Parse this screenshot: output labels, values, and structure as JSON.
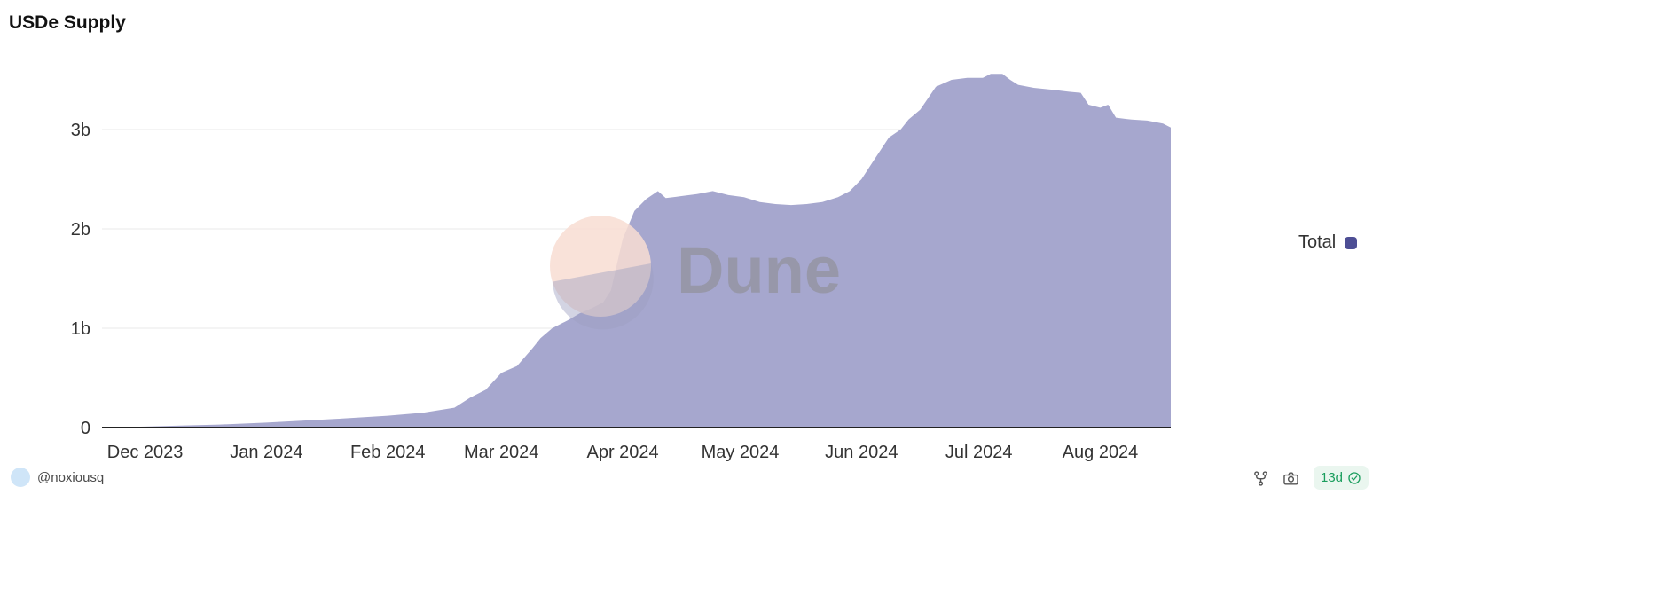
{
  "page": {
    "title": "USDe Supply"
  },
  "chart_data": {
    "type": "area",
    "title": "USDe Supply",
    "xlabel": "",
    "ylabel": "",
    "y_unit": "billions",
    "grid": "horizontal",
    "x_range": [
      "2023-11-20",
      "2024-08-19"
    ],
    "y_range": [
      0,
      3.6
    ],
    "x_ticks": [
      {
        "date": "2023-12-01",
        "label": "Dec 2023"
      },
      {
        "date": "2024-01-01",
        "label": "Jan 2024"
      },
      {
        "date": "2024-02-01",
        "label": "Feb 2024"
      },
      {
        "date": "2024-03-01",
        "label": "Mar 2024"
      },
      {
        "date": "2024-04-01",
        "label": "Apr 2024"
      },
      {
        "date": "2024-05-01",
        "label": "May 2024"
      },
      {
        "date": "2024-06-01",
        "label": "Jun 2024"
      },
      {
        "date": "2024-07-01",
        "label": "Jul 2024"
      },
      {
        "date": "2024-08-01",
        "label": "Aug 2024"
      }
    ],
    "y_ticks": [
      {
        "value": 0,
        "label": "0"
      },
      {
        "value": 1,
        "label": "1b"
      },
      {
        "value": 2,
        "label": "2b"
      },
      {
        "value": 3,
        "label": "3b"
      }
    ],
    "legend": {
      "position": "right",
      "items": [
        {
          "label": "Total",
          "swatch_color": "#4d4e94"
        }
      ]
    },
    "series": [
      {
        "name": "Total",
        "color": "#a6a7ce",
        "points": [
          [
            "2023-11-20",
            0.0
          ],
          [
            "2023-12-01",
            0.01
          ],
          [
            "2023-12-10",
            0.02
          ],
          [
            "2023-12-20",
            0.03
          ],
          [
            "2024-01-01",
            0.05
          ],
          [
            "2024-01-10",
            0.07
          ],
          [
            "2024-01-20",
            0.09
          ],
          [
            "2024-02-01",
            0.12
          ],
          [
            "2024-02-10",
            0.15
          ],
          [
            "2024-02-18",
            0.2
          ],
          [
            "2024-02-22",
            0.3
          ],
          [
            "2024-02-26",
            0.38
          ],
          [
            "2024-03-01",
            0.55
          ],
          [
            "2024-03-05",
            0.62
          ],
          [
            "2024-03-09",
            0.8
          ],
          [
            "2024-03-11",
            0.9
          ],
          [
            "2024-03-14",
            1.0
          ],
          [
            "2024-03-18",
            1.08
          ],
          [
            "2024-03-21",
            1.15
          ],
          [
            "2024-03-24",
            1.2
          ],
          [
            "2024-03-27",
            1.26
          ],
          [
            "2024-03-29",
            1.38
          ],
          [
            "2024-04-01",
            1.9
          ],
          [
            "2024-04-04",
            2.18
          ],
          [
            "2024-04-07",
            2.3
          ],
          [
            "2024-04-10",
            2.38
          ],
          [
            "2024-04-12",
            2.31
          ],
          [
            "2024-04-16",
            2.33
          ],
          [
            "2024-04-20",
            2.35
          ],
          [
            "2024-04-24",
            2.38
          ],
          [
            "2024-04-28",
            2.34
          ],
          [
            "2024-05-02",
            2.32
          ],
          [
            "2024-05-06",
            2.27
          ],
          [
            "2024-05-10",
            2.25
          ],
          [
            "2024-05-14",
            2.24
          ],
          [
            "2024-05-18",
            2.25
          ],
          [
            "2024-05-22",
            2.27
          ],
          [
            "2024-05-26",
            2.32
          ],
          [
            "2024-05-29",
            2.38
          ],
          [
            "2024-06-01",
            2.5
          ],
          [
            "2024-06-04",
            2.68
          ],
          [
            "2024-06-08",
            2.92
          ],
          [
            "2024-06-11",
            3.0
          ],
          [
            "2024-06-13",
            3.1
          ],
          [
            "2024-06-16",
            3.2
          ],
          [
            "2024-06-20",
            3.43
          ],
          [
            "2024-06-24",
            3.5
          ],
          [
            "2024-06-28",
            3.52
          ],
          [
            "2024-07-02",
            3.52
          ],
          [
            "2024-07-04",
            3.56
          ],
          [
            "2024-07-07",
            3.56
          ],
          [
            "2024-07-09",
            3.5
          ],
          [
            "2024-07-11",
            3.45
          ],
          [
            "2024-07-15",
            3.42
          ],
          [
            "2024-07-20",
            3.4
          ],
          [
            "2024-07-24",
            3.38
          ],
          [
            "2024-07-27",
            3.37
          ],
          [
            "2024-07-29",
            3.25
          ],
          [
            "2024-08-01",
            3.22
          ],
          [
            "2024-08-03",
            3.25
          ],
          [
            "2024-08-05",
            3.12
          ],
          [
            "2024-08-09",
            3.1
          ],
          [
            "2024-08-13",
            3.09
          ],
          [
            "2024-08-17",
            3.06
          ],
          [
            "2024-08-19",
            3.02
          ]
        ]
      }
    ]
  },
  "watermark": {
    "text": "Dune"
  },
  "footer": {
    "author": "@noxiousq",
    "age": "13d"
  },
  "colors": {
    "area_fill": "#a6a7ce",
    "legend_swatch": "#4d4e94",
    "axis_line": "#222222",
    "gridline": "#e8e8e8",
    "tick_label": "#333333",
    "watermark_circle": "#f8ddd2",
    "watermark_wedge": "#9da0c2",
    "watermark_text": "#8a8a8a",
    "badge_green": "#1b9e5e",
    "icon_gray": "#555555"
  }
}
